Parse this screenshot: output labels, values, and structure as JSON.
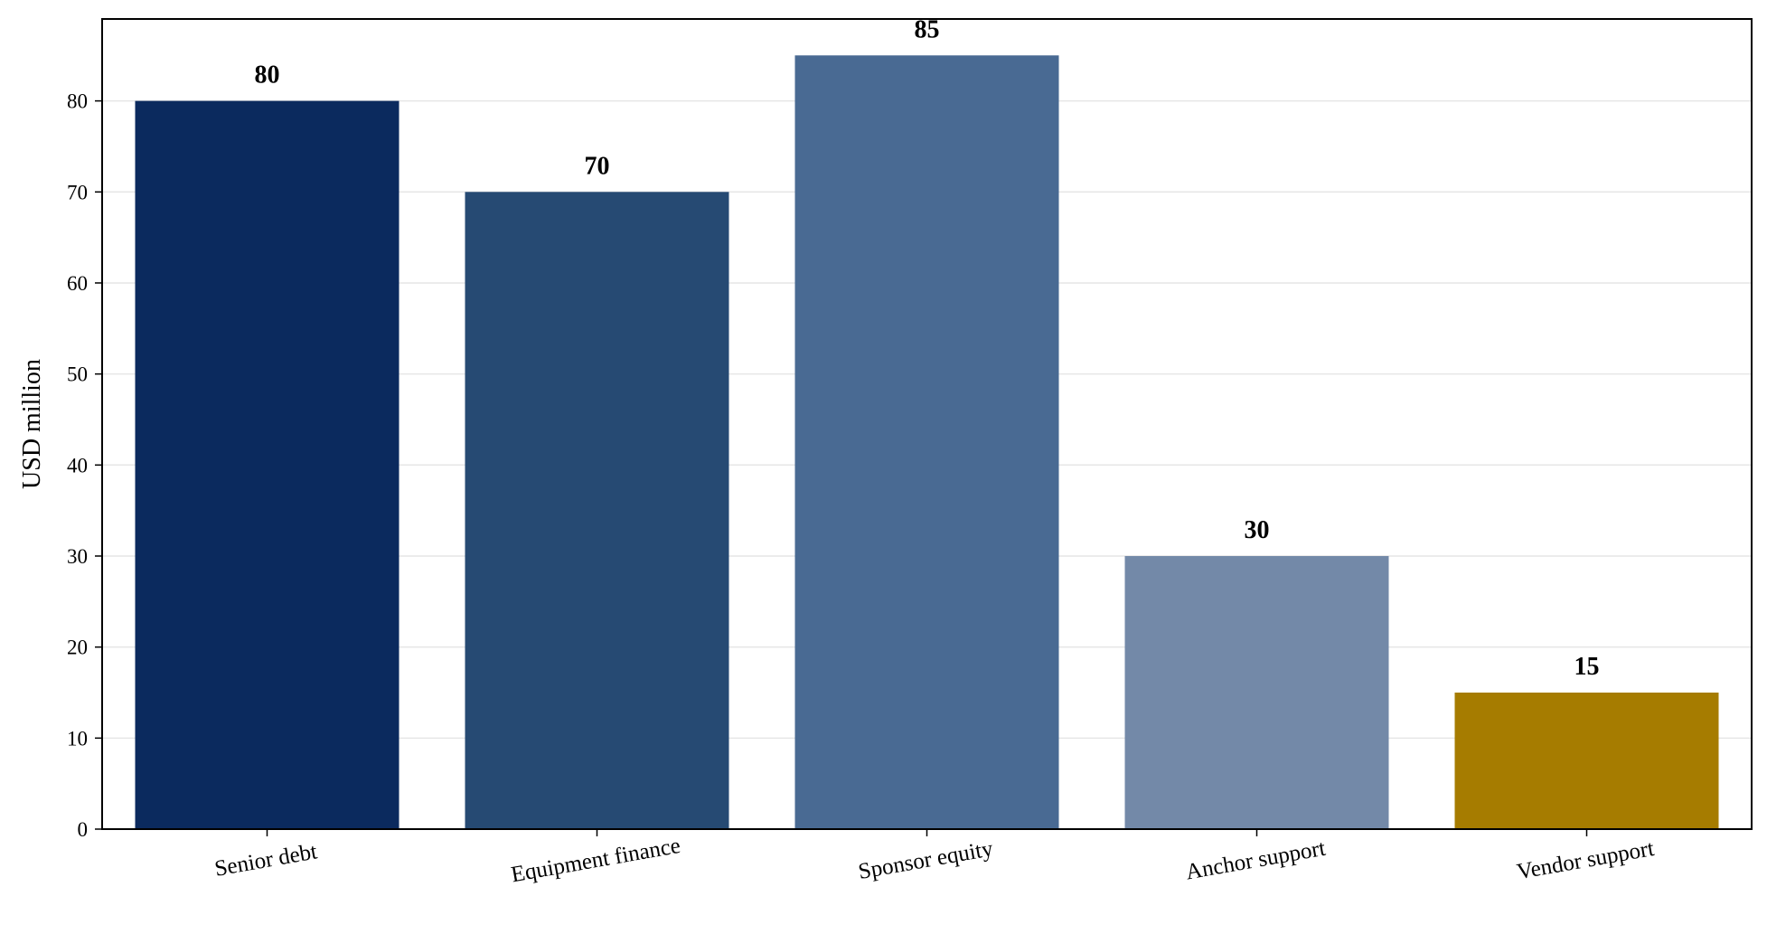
{
  "chart_data": {
    "type": "bar",
    "title": "",
    "xlabel": "",
    "ylabel": "USD million",
    "ylim": [
      0,
      89
    ],
    "yticks": [
      0,
      10,
      20,
      30,
      40,
      50,
      60,
      70,
      80
    ],
    "grid": "horizontal",
    "categories": [
      "Senior debt",
      "Equipment finance",
      "Sponsor equity",
      "Anchor support",
      "Vendor support"
    ],
    "values": [
      80,
      70,
      85,
      30,
      15
    ],
    "data_labels": [
      "80",
      "70",
      "85",
      "30",
      "15"
    ],
    "colors": [
      "#0b2a5e",
      "#264a73",
      "#496a93",
      "#7389a8",
      "#a67c00"
    ]
  }
}
